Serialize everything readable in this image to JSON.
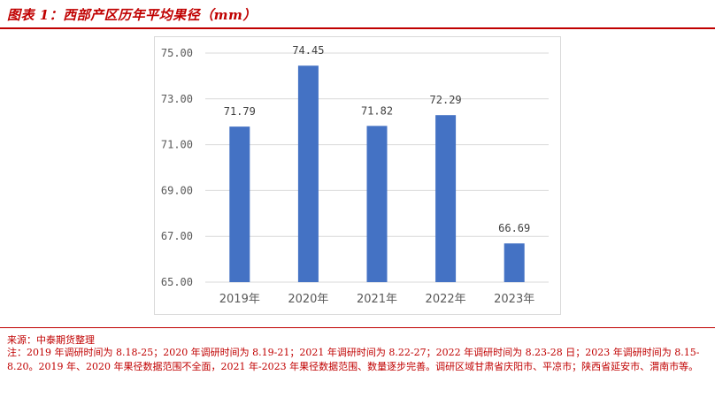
{
  "title": "图表 1：西部产区历年平均果径（mm）",
  "source": "来源：中泰期货整理",
  "note": "注：2019 年调研时间为 8.18-25；2020 年调研时间为 8.19-21；2021 年调研时间为 8.22-27；2022 年调研时间为 8.23-28 日；2023 年调研时间为 8.15-8.20。2019 年、2020 年果径数据范围不全面，2021 年-2023 年果径数据范围、数量逐步完善。调研区域甘肃省庆阳市、平凉市；陕西省延安市、渭南市等。",
  "colors": {
    "accent": "#c00000",
    "bar": "#4472c4",
    "grid": "#d9d9d9"
  },
  "chart_data": {
    "type": "bar",
    "title": "",
    "xlabel": "",
    "ylabel": "",
    "categories": [
      "2019年",
      "2020年",
      "2021年",
      "2022年",
      "2023年"
    ],
    "values": [
      71.79,
      74.45,
      71.82,
      72.29,
      66.69
    ],
    "value_labels": [
      "71.79",
      "74.45",
      "71.82",
      "72.29",
      "66.69"
    ],
    "ylim": [
      65,
      75
    ],
    "yticks": [
      "65.00",
      "67.00",
      "69.00",
      "71.00",
      "73.00",
      "75.00"
    ],
    "grid": true,
    "legend": "none"
  }
}
